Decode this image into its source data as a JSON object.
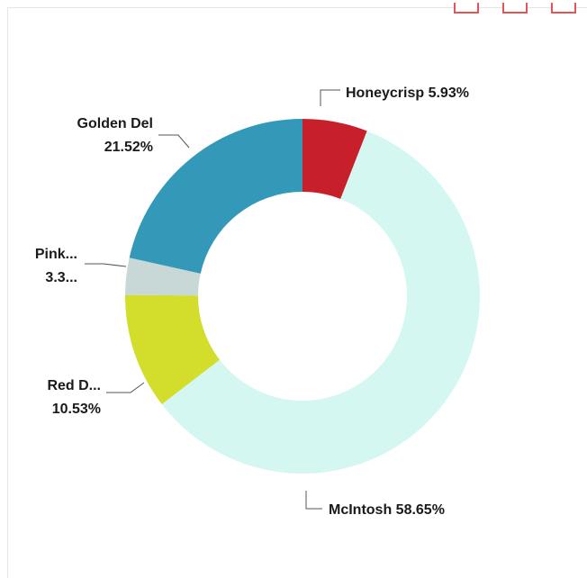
{
  "toolbar": {
    "buttons": [
      "zoom-button",
      "pan-button",
      "reset-button"
    ]
  },
  "chart_data": {
    "type": "pie",
    "variant": "donut",
    "title": "",
    "legend": "none",
    "colors": {
      "Honeycrisp": "#c8202a",
      "McIntosh": "#d4f7f2",
      "Red Delicious": "#d2de2b",
      "Pink Lady": "#c8d8d6",
      "Golden Delicious": "#3499b8"
    },
    "slices": [
      {
        "name": "Honeycrisp",
        "value": 5.93,
        "label_lines": [
          "Honeycrisp 5.93%"
        ]
      },
      {
        "name": "McIntosh",
        "value": 58.65,
        "label_lines": [
          "McIntosh 58.65%"
        ]
      },
      {
        "name": "Red Delicious",
        "value": 10.53,
        "label_lines": [
          "Red D...",
          "10.53%"
        ]
      },
      {
        "name": "Pink Lady",
        "value": 3.37,
        "label_lines": [
          "Pink...",
          "3.3..."
        ]
      },
      {
        "name": "Golden Delicious",
        "value": 21.52,
        "label_lines": [
          "Golden Del",
          "21.52%"
        ]
      }
    ]
  }
}
